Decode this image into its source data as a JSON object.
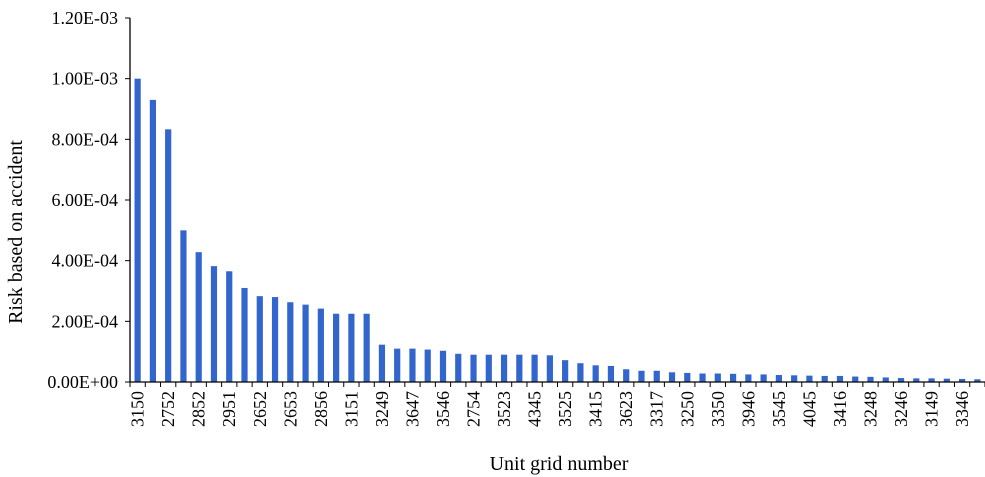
{
  "chart_data": {
    "type": "bar",
    "title": "",
    "xlabel": "Unit grid number",
    "ylabel": "Risk based on accident",
    "ylim": [
      0,
      0.0012
    ],
    "grid": false,
    "legend": "none",
    "bar_color": "#3366CC",
    "y_ticks": [
      {
        "value": 0,
        "label": "0.00E+00"
      },
      {
        "value": 0.0002,
        "label": "2.00E-04"
      },
      {
        "value": 0.0004,
        "label": "4.00E-04"
      },
      {
        "value": 0.0006,
        "label": "6.00E-04"
      },
      {
        "value": 0.0008,
        "label": "8.00E-04"
      },
      {
        "value": 0.001,
        "label": "1.00E-03"
      },
      {
        "value": 0.0012,
        "label": "1.20E-03"
      }
    ],
    "categories": [
      "3150",
      "",
      "2752",
      "",
      "2852",
      "",
      "2951",
      "",
      "2652",
      "",
      "2653",
      "",
      "2856",
      "",
      "3151",
      "",
      "3249",
      "",
      "3647",
      "",
      "3546",
      "",
      "2754",
      "",
      "3523",
      "",
      "4345",
      "",
      "3525",
      "",
      "3415",
      "",
      "3623",
      "",
      "3317",
      "",
      "3250",
      "",
      "3350",
      "",
      "3946",
      "",
      "3545",
      "",
      "4045",
      "",
      "3416",
      "",
      "3248",
      "",
      "3246",
      "",
      "3149",
      "",
      "3346",
      ""
    ],
    "values": [
      0.001,
      0.00093,
      0.000833,
      0.0005,
      0.000428,
      0.000382,
      0.000365,
      0.00031,
      0.000283,
      0.00028,
      0.000263,
      0.000255,
      0.000242,
      0.000225,
      0.000225,
      0.000225,
      0.000123,
      0.00011,
      0.00011,
      0.000107,
      0.000103,
      9.3e-05,
      9e-05,
      9e-05,
      9e-05,
      9e-05,
      9e-05,
      8.8e-05,
      7.2e-05,
      6.2e-05,
      5.5e-05,
      5.3e-05,
      4.2e-05,
      3.7e-05,
      3.7e-05,
      3.2e-05,
      3e-05,
      2.8e-05,
      2.8e-05,
      2.7e-05,
      2.5e-05,
      2.5e-05,
      2.3e-05,
      2.2e-05,
      2.1e-05,
      2e-05,
      2e-05,
      1.8e-05,
      1.7e-05,
      1.5e-05,
      1.3e-05,
      1.2e-05,
      1.2e-05,
      1.1e-05,
      1e-05,
      9e-06
    ]
  }
}
